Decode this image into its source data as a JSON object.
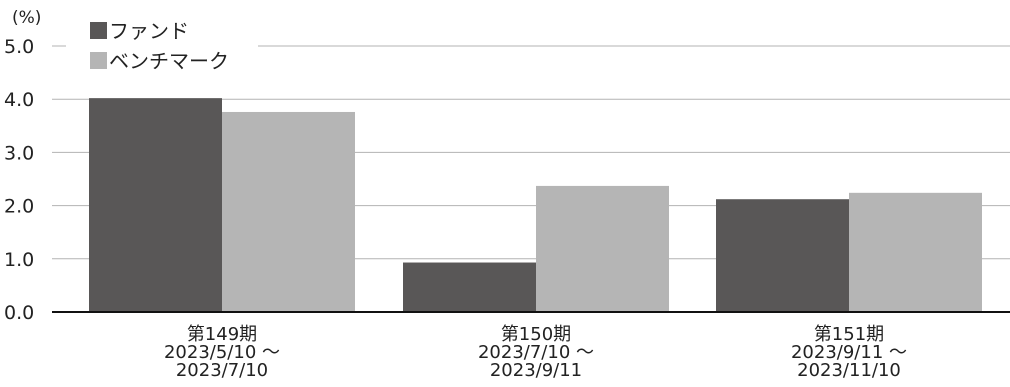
{
  "chart_data": {
    "type": "bar",
    "y_unit": "(%)",
    "ylim": [
      0,
      5
    ],
    "yticks": [
      "0.0",
      "1.0",
      "2.0",
      "3.0",
      "4.0",
      "5.0"
    ],
    "grid": true,
    "legend_position": "top-left",
    "categories": [
      [
        "第149期",
        "2023/5/10 ～",
        "2023/7/10"
      ],
      [
        "第150期",
        "2023/7/10 ～",
        "2023/9/11"
      ],
      [
        "第151期",
        "2023/9/11 ～",
        "2023/11/10"
      ]
    ],
    "series": [
      {
        "name": "ファンド",
        "color": "#595757",
        "values": [
          4.02,
          0.93,
          2.12
        ]
      },
      {
        "name": "ベンチマーク",
        "color": "#b5b5b5",
        "values": [
          3.76,
          2.37,
          2.24
        ]
      }
    ]
  }
}
